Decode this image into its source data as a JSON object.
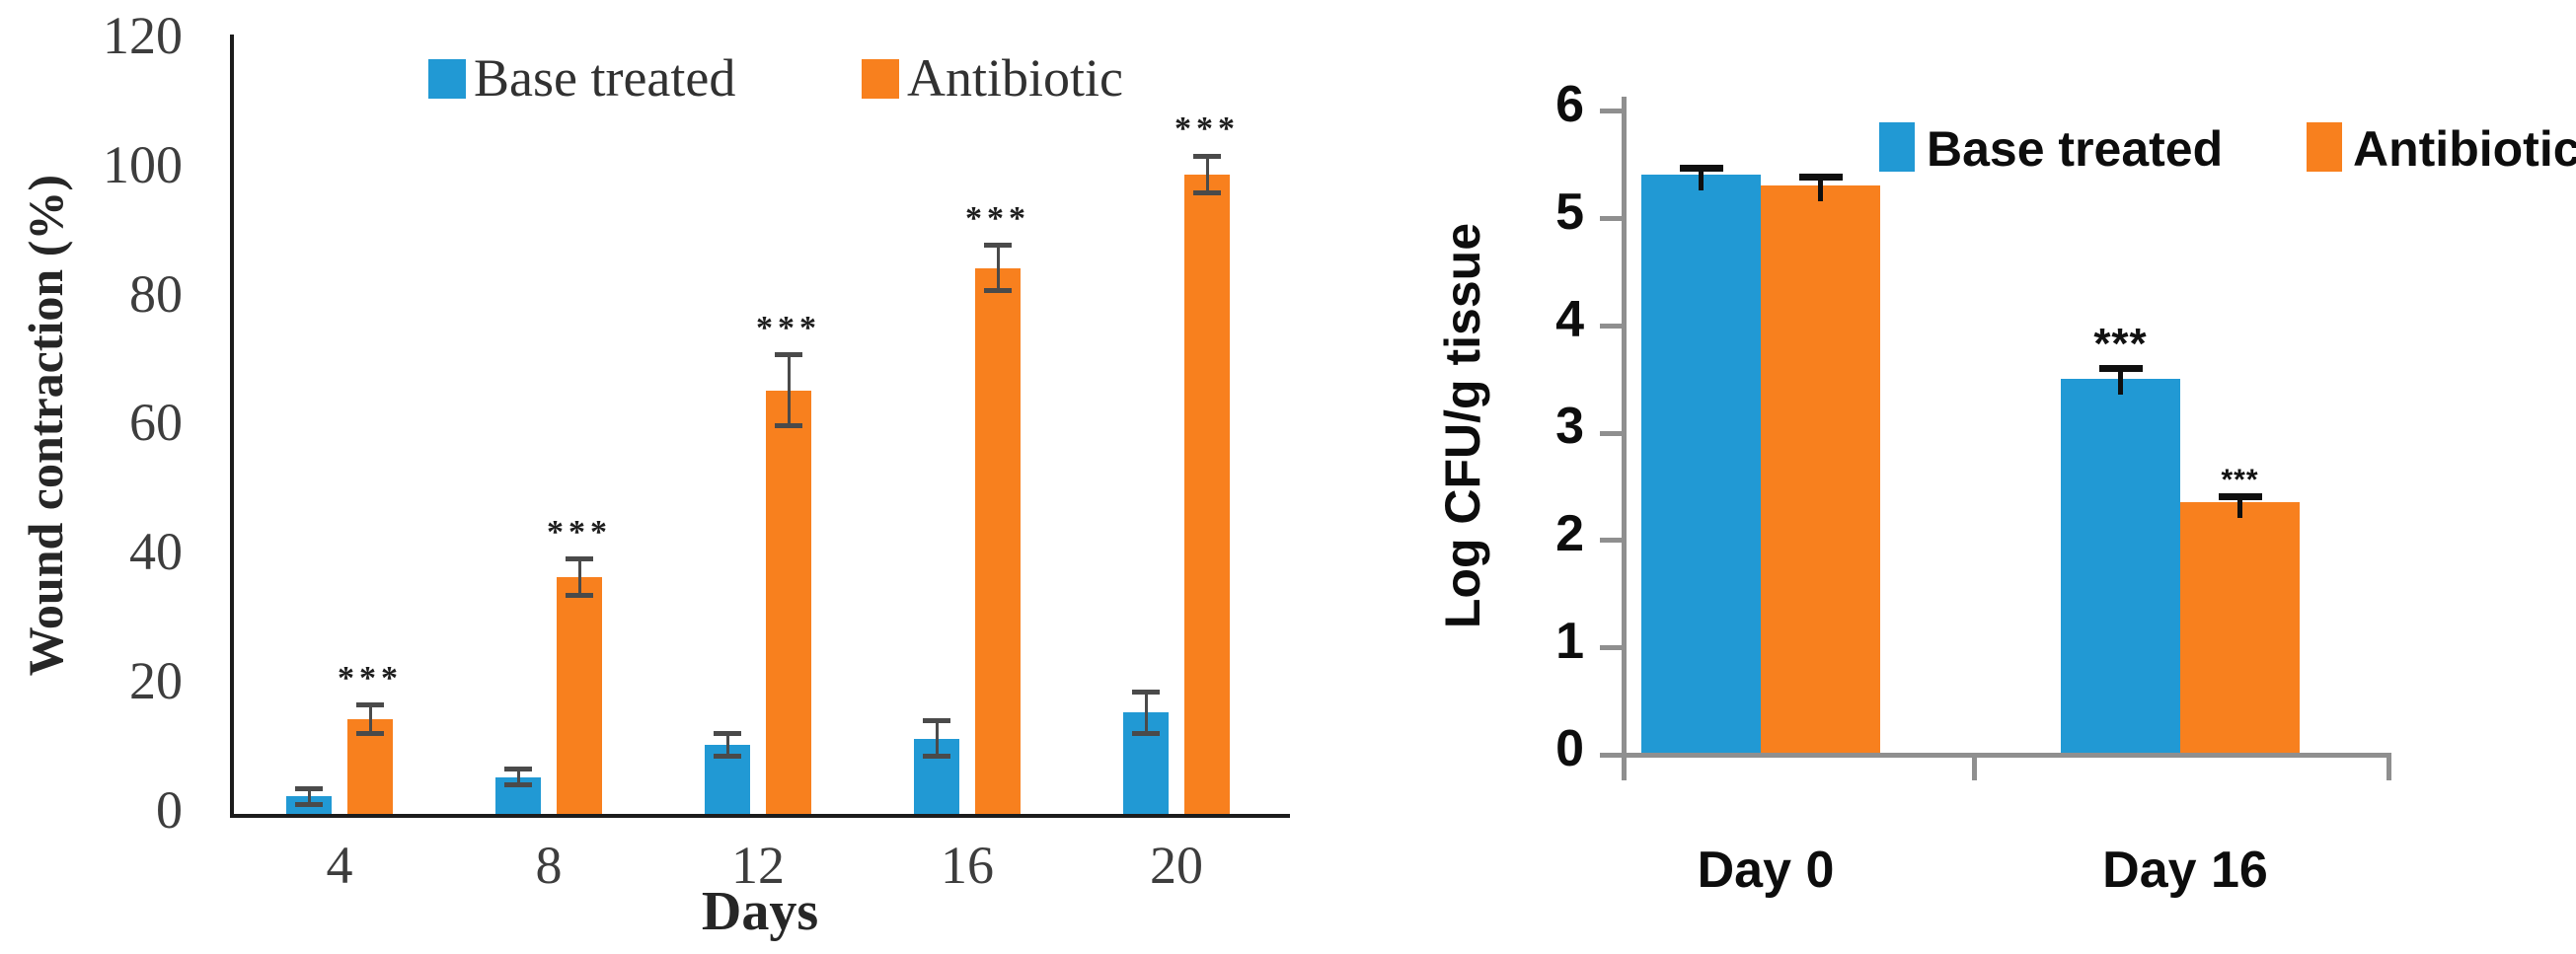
{
  "figure": {
    "background": "#ffffff",
    "significance_symbol": "***"
  },
  "chart_data": [
    {
      "id": "wound-contraction",
      "type": "bar",
      "title": "",
      "xlabel": "Days",
      "ylabel": "Wound contraction (%)",
      "categories": [
        "4",
        "8",
        "12",
        "16",
        "20"
      ],
      "ylim": [
        0,
        120
      ],
      "yticks": [
        0,
        20,
        40,
        60,
        80,
        100,
        120
      ],
      "grid": false,
      "legend_position": "top",
      "series": [
        {
          "name": "Base treated",
          "color": "#2199d4",
          "values": [
            3,
            6,
            11,
            12,
            16
          ],
          "errors": [
            1.2,
            1.2,
            1.8,
            2.8,
            3.2
          ],
          "significance": [
            "",
            "",
            "",
            "",
            ""
          ]
        },
        {
          "name": "Antibiotic",
          "color": "#f8801e",
          "values": [
            15,
            37,
            66,
            85,
            99.5
          ],
          "errors": [
            2.2,
            2.8,
            5.5,
            3.5,
            2.8
          ],
          "significance": [
            "***",
            "***",
            "***",
            "***",
            "***"
          ]
        }
      ]
    },
    {
      "id": "log-cfu",
      "type": "bar",
      "title": "",
      "xlabel": "",
      "ylabel": "Log CFU/g tissue",
      "categories": [
        "Day 0",
        "Day 16"
      ],
      "ylim": [
        0,
        6
      ],
      "yticks": [
        0,
        1,
        2,
        3,
        4,
        5,
        6
      ],
      "grid": false,
      "legend_position": "top",
      "series": [
        {
          "name": "Base treated",
          "color": "#2199d4",
          "values": [
            5.4,
            3.5
          ],
          "errors": [
            0.06,
            0.1
          ],
          "significance": [
            "",
            "***"
          ]
        },
        {
          "name": "Antibiotic",
          "color": "#f8801e",
          "values": [
            5.3,
            2.35
          ],
          "errors": [
            0.08,
            0.05
          ],
          "significance": [
            "",
            "***"
          ]
        }
      ]
    }
  ]
}
